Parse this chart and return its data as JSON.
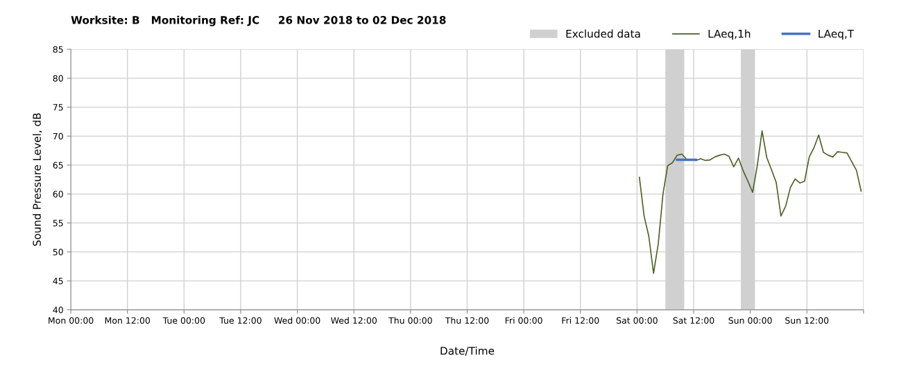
{
  "chart_data": {
    "type": "line",
    "title": "Worksite: B   Monitoring Ref: JC     26 Nov 2018 to 02 Dec 2018",
    "xlabel": "Date/Time",
    "ylabel": "Sound Pressure Level, dB",
    "series": [
      {
        "name": "LAeq,1h",
        "color": "#4f6228",
        "x": [
          "2018-12-01T00:30",
          "2018-12-01T01:30",
          "2018-12-01T02:30",
          "2018-12-01T03:30",
          "2018-12-01T04:30",
          "2018-12-01T05:30",
          "2018-12-01T06:30",
          "2018-12-01T07:30",
          "2018-12-01T08:30",
          "2018-12-01T09:30",
          "2018-12-01T10:30",
          "2018-12-01T11:30",
          "2018-12-01T12:30",
          "2018-12-01T13:30",
          "2018-12-01T14:30",
          "2018-12-01T15:30",
          "2018-12-01T16:30",
          "2018-12-01T17:30",
          "2018-12-01T18:30",
          "2018-12-01T19:30",
          "2018-12-01T20:30",
          "2018-12-01T21:30",
          "2018-12-01T22:30",
          "2018-12-01T23:30",
          "2018-12-02T00:30",
          "2018-12-02T01:30",
          "2018-12-02T02:30",
          "2018-12-02T03:30",
          "2018-12-02T04:30",
          "2018-12-02T05:30",
          "2018-12-02T06:30",
          "2018-12-02T07:30",
          "2018-12-02T08:30",
          "2018-12-02T09:30",
          "2018-12-02T10:30",
          "2018-12-02T11:30",
          "2018-12-02T12:30",
          "2018-12-02T13:30",
          "2018-12-02T14:30",
          "2018-12-02T15:30",
          "2018-12-02T16:30",
          "2018-12-02T17:30",
          "2018-12-02T18:30",
          "2018-12-02T19:30",
          "2018-12-02T20:30",
          "2018-12-02T21:30",
          "2018-12-02T22:30",
          "2018-12-02T23:30"
        ],
        "values": [
          62.9,
          56.2,
          52.7,
          46.3,
          51.4,
          60.0,
          64.9,
          65.4,
          66.7,
          66.9,
          66.0,
          66.0,
          65.8,
          66.1,
          65.8,
          65.9,
          66.4,
          66.7,
          66.9,
          66.5,
          64.7,
          66.2,
          64.0,
          62.2,
          60.3,
          65.0,
          70.9,
          66.3,
          64.2,
          62.0,
          56.2,
          57.9,
          61.1,
          62.6,
          61.9,
          62.2,
          66.4,
          68.0,
          70.2,
          67.2,
          66.7,
          66.4,
          67.3,
          67.2,
          67.1,
          65.6,
          64.1,
          60.5
        ]
      },
      {
        "name": "LAeq,T",
        "color": "#4472c4",
        "x": [
          "2018-12-01T08:30",
          "2018-12-01T12:30"
        ],
        "values": [
          65.9,
          65.9
        ]
      }
    ],
    "bands": [
      {
        "axis": "x",
        "from": "2018-12-01T06:00",
        "to": "2018-12-01T10:00",
        "label": "Excluded data",
        "color": "#d0d0d0"
      },
      {
        "axis": "x",
        "from": "2018-12-01T22:00",
        "to": "2018-12-02T01:00",
        "color": "#d0d0d0"
      }
    ],
    "xlim": [
      "2018-11-26T00:00",
      "2018-12-03T00:00"
    ],
    "xticks": [
      {
        "value": "2018-11-26T00:00",
        "label": "Mon 00:00"
      },
      {
        "value": "2018-11-26T12:00",
        "label": "Mon 12:00"
      },
      {
        "value": "2018-11-27T00:00",
        "label": "Tue 00:00"
      },
      {
        "value": "2018-11-27T12:00",
        "label": "Tue 12:00"
      },
      {
        "value": "2018-11-28T00:00",
        "label": "Wed 00:00"
      },
      {
        "value": "2018-11-28T12:00",
        "label": "Wed 12:00"
      },
      {
        "value": "2018-11-29T00:00",
        "label": "Thu 00:00"
      },
      {
        "value": "2018-11-29T12:00",
        "label": "Thu 12:00"
      },
      {
        "value": "2018-11-30T00:00",
        "label": "Fri 00:00"
      },
      {
        "value": "2018-11-30T12:00",
        "label": "Fri 12:00"
      },
      {
        "value": "2018-12-01T00:00",
        "label": "Sat 00:00"
      },
      {
        "value": "2018-12-01T12:00",
        "label": "Sat 12:00"
      },
      {
        "value": "2018-12-02T00:00",
        "label": "Sun 00:00"
      },
      {
        "value": "2018-12-02T12:00",
        "label": "Sun 12:00"
      },
      {
        "value": "2018-12-03T00:00",
        "label": null
      }
    ],
    "ylim": [
      40,
      85
    ],
    "yticks": [
      40,
      45,
      50,
      55,
      60,
      65,
      70,
      75,
      80,
      85
    ],
    "grid": true,
    "legend": "top right",
    "marker": "none",
    "line_style": "solid"
  }
}
